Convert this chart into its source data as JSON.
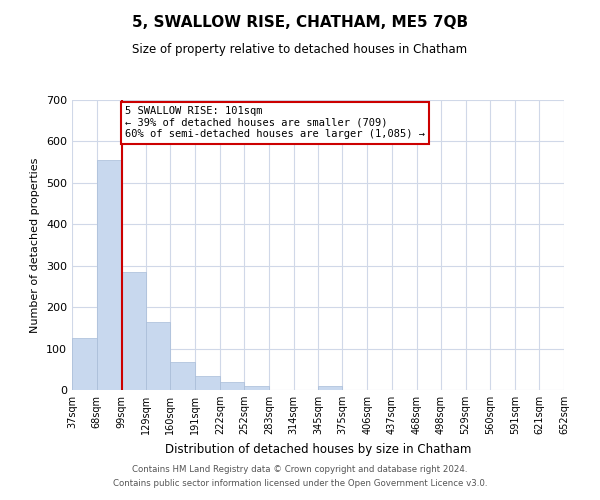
{
  "title": "5, SWALLOW RISE, CHATHAM, ME5 7QB",
  "subtitle": "Size of property relative to detached houses in Chatham",
  "xlabel": "Distribution of detached houses by size in Chatham",
  "ylabel": "Number of detached properties",
  "bar_edges": [
    37,
    68,
    99,
    129,
    160,
    191,
    222,
    252,
    283,
    314,
    345,
    375,
    406,
    437,
    468,
    498,
    529,
    560,
    591,
    621,
    652
  ],
  "bar_heights": [
    125,
    555,
    285,
    163,
    68,
    33,
    20,
    10,
    0,
    0,
    10,
    0,
    0,
    0,
    0,
    0,
    0,
    0,
    0,
    0
  ],
  "bar_color": "#c8d8ee",
  "bar_edge_color": "#a8bcd8",
  "property_line_x": 99,
  "property_line_color": "#cc0000",
  "annotation_text": "5 SWALLOW RISE: 101sqm\n← 39% of detached houses are smaller (709)\n60% of semi-detached houses are larger (1,085) →",
  "annotation_box_color": "#ffffff",
  "annotation_box_edge_color": "#cc0000",
  "ylim": [
    0,
    700
  ],
  "yticks": [
    0,
    100,
    200,
    300,
    400,
    500,
    600,
    700
  ],
  "tick_labels": [
    "37sqm",
    "68sqm",
    "99sqm",
    "129sqm",
    "160sqm",
    "191sqm",
    "222sqm",
    "252sqm",
    "283sqm",
    "314sqm",
    "345sqm",
    "375sqm",
    "406sqm",
    "437sqm",
    "468sqm",
    "498sqm",
    "529sqm",
    "560sqm",
    "591sqm",
    "621sqm",
    "652sqm"
  ],
  "footer_line1": "Contains HM Land Registry data © Crown copyright and database right 2024.",
  "footer_line2": "Contains public sector information licensed under the Open Government Licence v3.0.",
  "background_color": "#ffffff",
  "grid_color": "#d0d8e8"
}
